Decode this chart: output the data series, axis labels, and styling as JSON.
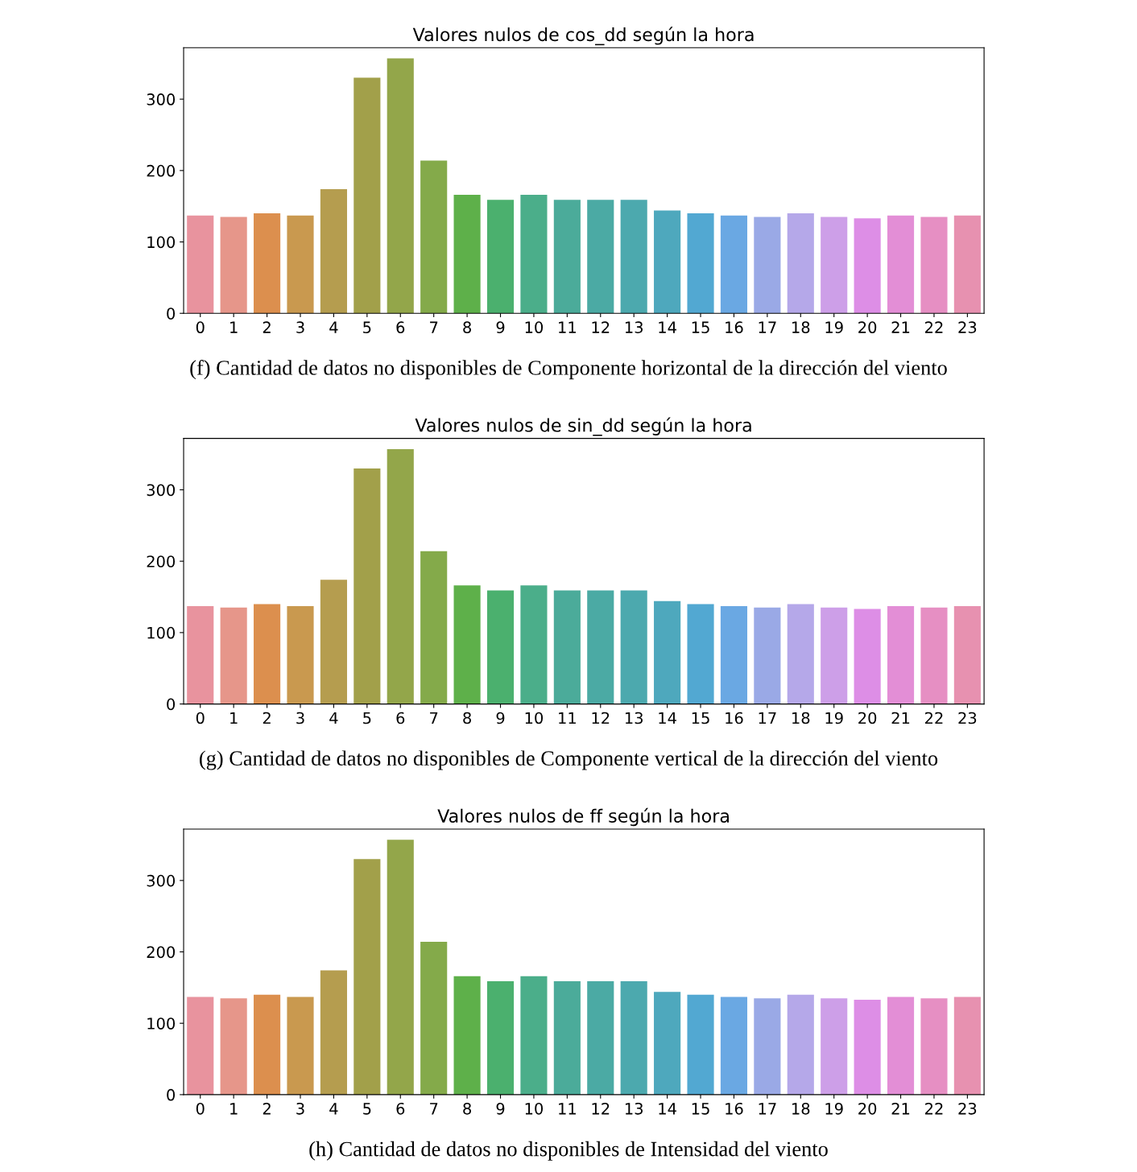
{
  "chart_data": [
    {
      "type": "bar",
      "title": "Valores nulos de cos_dd según la hora",
      "annotations": [
        "(f) Cantidad de datos no disponibles de Componente horizontal de la dirección del viento"
      ],
      "categories": [
        "0",
        "1",
        "2",
        "3",
        "4",
        "5",
        "6",
        "7",
        "8",
        "9",
        "10",
        "11",
        "12",
        "13",
        "14",
        "15",
        "16",
        "17",
        "18",
        "19",
        "20",
        "21",
        "22",
        "23"
      ],
      "values": [
        137,
        135,
        140,
        137,
        174,
        330,
        357,
        214,
        166,
        159,
        166,
        159,
        159,
        159,
        144,
        140,
        137,
        135,
        140,
        135,
        133,
        137,
        135,
        137
      ],
      "colors": [
        "#e8939e",
        "#e6968a",
        "#dc8f4e",
        "#c9994f",
        "#b59d4f",
        "#a2a04a",
        "#93a64a",
        "#84aa4a",
        "#5eb04a",
        "#4bb06e",
        "#4bae8a",
        "#4bab9a",
        "#4baaa4",
        "#4ca9ae",
        "#4ea8bd",
        "#52a8d2",
        "#6aa8e3",
        "#9aa9e6",
        "#b5a8e9",
        "#cd9fe8",
        "#dd8ee6",
        "#e38ed6",
        "#e68fc3",
        "#e791b0"
      ],
      "ylim": [
        0,
        372
      ],
      "yticks": [
        0,
        100,
        200,
        300
      ],
      "grid": false
    },
    {
      "type": "bar",
      "title": "Valores nulos de sin_dd según la hora",
      "annotations": [
        "(g) Cantidad de datos no disponibles de Componente vertical de la dirección del viento"
      ],
      "categories": [
        "0",
        "1",
        "2",
        "3",
        "4",
        "5",
        "6",
        "7",
        "8",
        "9",
        "10",
        "11",
        "12",
        "13",
        "14",
        "15",
        "16",
        "17",
        "18",
        "19",
        "20",
        "21",
        "22",
        "23"
      ],
      "values": [
        137,
        135,
        140,
        137,
        174,
        330,
        357,
        214,
        166,
        159,
        166,
        159,
        159,
        159,
        144,
        140,
        137,
        135,
        140,
        135,
        133,
        137,
        135,
        137
      ],
      "colors": [
        "#e8939e",
        "#e6968a",
        "#dc8f4e",
        "#c9994f",
        "#b59d4f",
        "#a2a04a",
        "#93a64a",
        "#84aa4a",
        "#5eb04a",
        "#4bb06e",
        "#4bae8a",
        "#4bab9a",
        "#4baaa4",
        "#4ca9ae",
        "#4ea8bd",
        "#52a8d2",
        "#6aa8e3",
        "#9aa9e6",
        "#b5a8e9",
        "#cd9fe8",
        "#dd8ee6",
        "#e38ed6",
        "#e68fc3",
        "#e791b0"
      ],
      "ylim": [
        0,
        372
      ],
      "yticks": [
        0,
        100,
        200,
        300
      ],
      "grid": false
    },
    {
      "type": "bar",
      "title": "Valores nulos de ff según la hora",
      "annotations": [
        "(h) Cantidad de datos no disponibles de Intensidad del viento"
      ],
      "categories": [
        "0",
        "1",
        "2",
        "3",
        "4",
        "5",
        "6",
        "7",
        "8",
        "9",
        "10",
        "11",
        "12",
        "13",
        "14",
        "15",
        "16",
        "17",
        "18",
        "19",
        "20",
        "21",
        "22",
        "23"
      ],
      "values": [
        137,
        135,
        140,
        137,
        174,
        330,
        357,
        214,
        166,
        159,
        166,
        159,
        159,
        159,
        144,
        140,
        137,
        135,
        140,
        135,
        133,
        137,
        135,
        137
      ],
      "colors": [
        "#e8939e",
        "#e6968a",
        "#dc8f4e",
        "#c9994f",
        "#b59d4f",
        "#a2a04a",
        "#93a64a",
        "#84aa4a",
        "#5eb04a",
        "#4bb06e",
        "#4bae8a",
        "#4bab9a",
        "#4baaa4",
        "#4ca9ae",
        "#4ea8bd",
        "#52a8d2",
        "#6aa8e3",
        "#9aa9e6",
        "#b5a8e9",
        "#cd9fe8",
        "#dd8ee6",
        "#e38ed6",
        "#e68fc3",
        "#e791b0"
      ],
      "ylim": [
        0,
        372
      ],
      "yticks": [
        0,
        100,
        200,
        300
      ],
      "grid": false
    }
  ]
}
